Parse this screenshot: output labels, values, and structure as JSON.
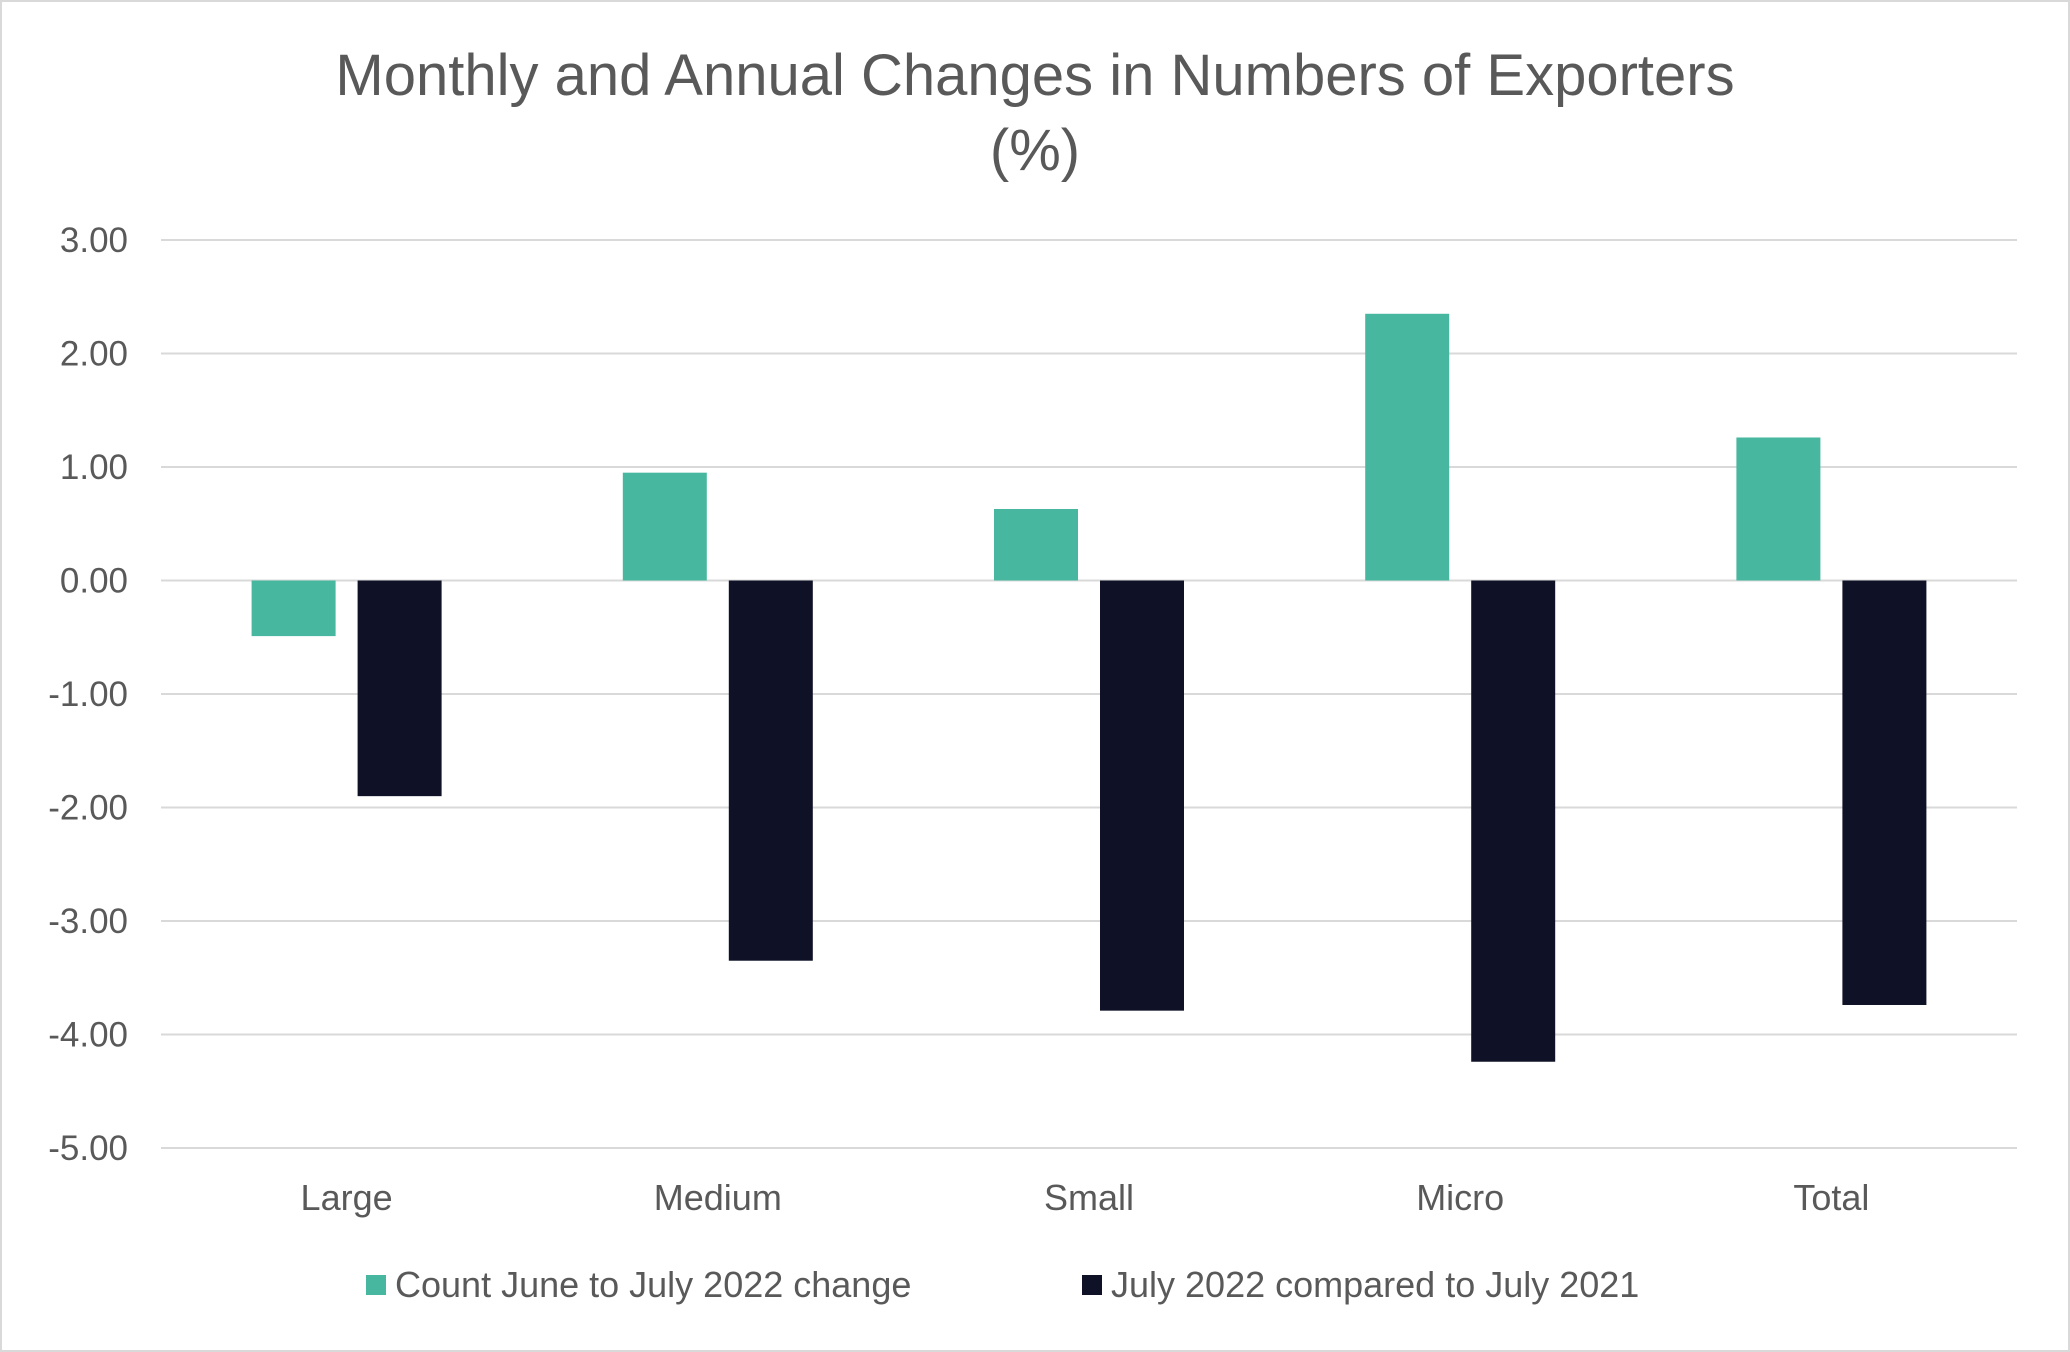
{
  "chart_data": {
    "type": "bar",
    "title": "Monthly and Annual Changes in Numbers of Exporters",
    "subtitle": "(%)",
    "xlabel": "",
    "ylabel": "",
    "ylim": [
      -5,
      3
    ],
    "yticks": [
      "3.00",
      "2.00",
      "1.00",
      "0.00",
      "-1.00",
      "-2.00",
      "-3.00",
      "-4.00",
      "-5.00"
    ],
    "ytick_values": [
      3,
      2,
      1,
      0,
      -1,
      -2,
      -3,
      -4,
      -5
    ],
    "grid": true,
    "legend_position": "bottom",
    "categories": [
      "Large",
      "Medium",
      "Small",
      "Micro",
      "Total"
    ],
    "series": [
      {
        "name": "Count June to July 2022 change",
        "color": "#47B89F",
        "values": [
          -0.49,
          0.95,
          0.63,
          2.35,
          1.26
        ]
      },
      {
        "name": "July 2022 compared to July 2021",
        "color": "#0F1226",
        "values": [
          -1.9,
          -3.35,
          -3.79,
          -4.24,
          -3.74
        ]
      }
    ]
  }
}
